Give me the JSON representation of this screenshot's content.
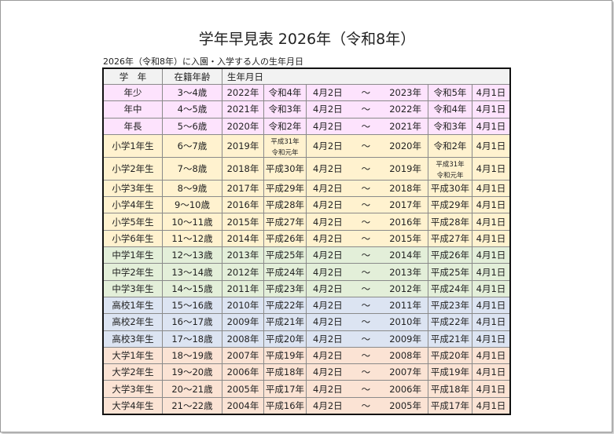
{
  "title": "学年早見表 2026年（令和8年）",
  "subtitle": "2026年（令和8年）に入園・入学する人の生年月日",
  "headers": {
    "grade": "学　年",
    "age": "在籍年齢",
    "birth": "生年月日"
  },
  "start_date": "4月2日",
  "tilde": "～",
  "end_date": "4月1日",
  "group_colors": {
    "k": "#fde3fd",
    "e": "#fff2cf",
    "j": "#e3efd9",
    "h": "#dce4f2",
    "u": "#fbe3d4"
  },
  "rows": [
    {
      "g": "k",
      "grade": "年少",
      "age": "3～4歳",
      "y1": "2022年",
      "e1": "令和4年",
      "y2": "2023年",
      "e2": "令和5年"
    },
    {
      "g": "k",
      "grade": "年中",
      "age": "4～5歳",
      "y1": "2021年",
      "e1": "令和3年",
      "y2": "2022年",
      "e2": "令和4年"
    },
    {
      "g": "k",
      "grade": "年長",
      "age": "5～6歳",
      "y1": "2020年",
      "e1": "令和2年",
      "y2": "2021年",
      "e2": "令和3年"
    },
    {
      "g": "e",
      "grade": "小学1年生",
      "age": "6～7歳",
      "y1": "2019年",
      "e1": "平成31年",
      "e1b": "令和元年",
      "y2": "2020年",
      "e2": "令和2年"
    },
    {
      "g": "e",
      "grade": "小学2年生",
      "age": "7～8歳",
      "y1": "2018年",
      "e1": "平成30年",
      "y2": "2019年",
      "e2": "平成31年",
      "e2b": "令和元年"
    },
    {
      "g": "e",
      "grade": "小学3年生",
      "age": "8～9歳",
      "y1": "2017年",
      "e1": "平成29年",
      "y2": "2018年",
      "e2": "平成30年"
    },
    {
      "g": "e",
      "grade": "小学4年生",
      "age": "9～10歳",
      "y1": "2016年",
      "e1": "平成28年",
      "y2": "2017年",
      "e2": "平成29年"
    },
    {
      "g": "e",
      "grade": "小学5年生",
      "age": "10～11歳",
      "y1": "2015年",
      "e1": "平成27年",
      "y2": "2016年",
      "e2": "平成28年"
    },
    {
      "g": "e",
      "grade": "小学6年生",
      "age": "11～12歳",
      "y1": "2014年",
      "e1": "平成26年",
      "y2": "2015年",
      "e2": "平成27年"
    },
    {
      "g": "j",
      "grade": "中学1年生",
      "age": "12～13歳",
      "y1": "2013年",
      "e1": "平成25年",
      "y2": "2014年",
      "e2": "平成26年"
    },
    {
      "g": "j",
      "grade": "中学2年生",
      "age": "13～14歳",
      "y1": "2012年",
      "e1": "平成24年",
      "y2": "2013年",
      "e2": "平成25年"
    },
    {
      "g": "j",
      "grade": "中学3年生",
      "age": "14～15歳",
      "y1": "2011年",
      "e1": "平成23年",
      "y2": "2012年",
      "e2": "平成24年"
    },
    {
      "g": "h",
      "grade": "高校1年生",
      "age": "15～16歳",
      "y1": "2010年",
      "e1": "平成22年",
      "y2": "2011年",
      "e2": "平成23年"
    },
    {
      "g": "h",
      "grade": "高校2年生",
      "age": "16～17歳",
      "y1": "2009年",
      "e1": "平成21年",
      "y2": "2010年",
      "e2": "平成22年"
    },
    {
      "g": "h",
      "grade": "高校3年生",
      "age": "17～18歳",
      "y1": "2008年",
      "e1": "平成20年",
      "y2": "2009年",
      "e2": "平成21年"
    },
    {
      "g": "u",
      "grade": "大学1年生",
      "age": "18～19歳",
      "y1": "2007年",
      "e1": "平成19年",
      "y2": "2008年",
      "e2": "平成20年"
    },
    {
      "g": "u",
      "grade": "大学2年生",
      "age": "19～20歳",
      "y1": "2006年",
      "e1": "平成18年",
      "y2": "2007年",
      "e2": "平成19年"
    },
    {
      "g": "u",
      "grade": "大学3年生",
      "age": "20～21歳",
      "y1": "2005年",
      "e1": "平成17年",
      "y2": "2006年",
      "e2": "平成18年"
    },
    {
      "g": "u",
      "grade": "大学4年生",
      "age": "21～22歳",
      "y1": "2004年",
      "e1": "平成16年",
      "y2": "2005年",
      "e2": "平成17年"
    }
  ]
}
